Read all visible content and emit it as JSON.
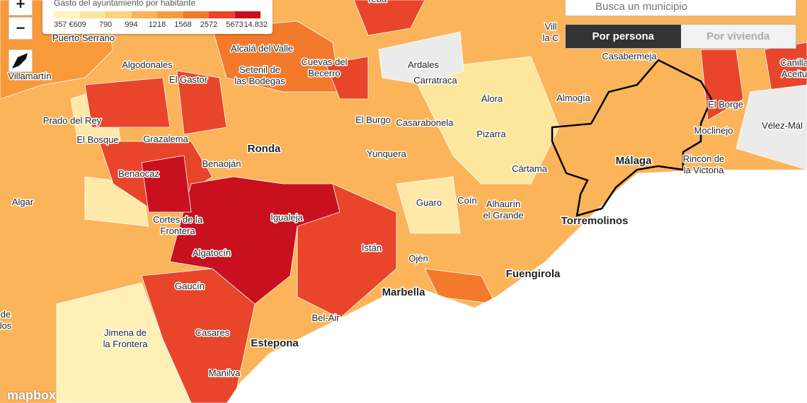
{
  "controls": {
    "zoom_in": "+",
    "zoom_out": "−",
    "search_placeholder": "Busca un municipio",
    "tab_active": "Por persona",
    "tab_inactive": "Por vivienda",
    "attribution": "mapbox"
  },
  "legend": {
    "title": "Gasto del ayuntamiento por habitante",
    "labels": [
      "357 €",
      "609",
      "790",
      "994",
      "1218",
      "1568",
      "2572",
      "5673",
      "14.832"
    ]
  },
  "places": [
    [
      "Teba"
    ],
    [
      "Vill",
      "la C"
    ],
    [
      "Puerto Serrano"
    ],
    [
      "Alcalá del Valle"
    ],
    [
      "Cuevas del",
      "Becerro"
    ],
    [
      "Ardales"
    ],
    [
      "Casabermeja"
    ],
    [
      "Canilla",
      "Aceitu"
    ],
    [
      "Villamartín"
    ],
    [
      "Algodonales"
    ],
    [
      "El Gastor"
    ],
    [
      "Setenil de",
      "las Bodegas"
    ],
    [
      "Carratraca"
    ],
    [
      "Álora"
    ],
    [
      "Almogía"
    ],
    [
      "El Borge"
    ],
    [
      "Prado del Rey"
    ],
    [
      "El Bosque"
    ],
    [
      "Grazalema"
    ],
    [
      "El Burgo"
    ],
    [
      "Casarabonela"
    ],
    [
      "Pizarra"
    ],
    [
      "Moclinejo"
    ],
    [
      "Vélez-Mál"
    ],
    [
      "Ronda"
    ],
    [
      "Benaoján"
    ],
    [
      "Yunquera"
    ],
    [
      "Málaga"
    ],
    [
      "Rincón de",
      "la Victoria"
    ],
    [
      "Benaocaz"
    ],
    [
      "Cártama"
    ],
    [
      "Algar"
    ],
    [
      "Guaro"
    ],
    [
      "Coín"
    ],
    [
      "Alhaurín",
      "el Grande"
    ],
    [
      "Igualeja"
    ],
    [
      "Cortes de la",
      "Frontera"
    ],
    [
      "Torremolinos"
    ],
    [
      "Algatocín"
    ],
    [
      "Istán"
    ],
    [
      "Ojén"
    ],
    [
      "Fuengirola"
    ],
    [
      "Marbella"
    ],
    [
      "Gaucín"
    ],
    [
      "de",
      "los"
    ],
    [
      "Bel-Air"
    ],
    [
      "Jimena de",
      "la Frontera"
    ],
    [
      "Casares"
    ],
    [
      "Estepona"
    ],
    [
      "Manilva"
    ]
  ]
}
